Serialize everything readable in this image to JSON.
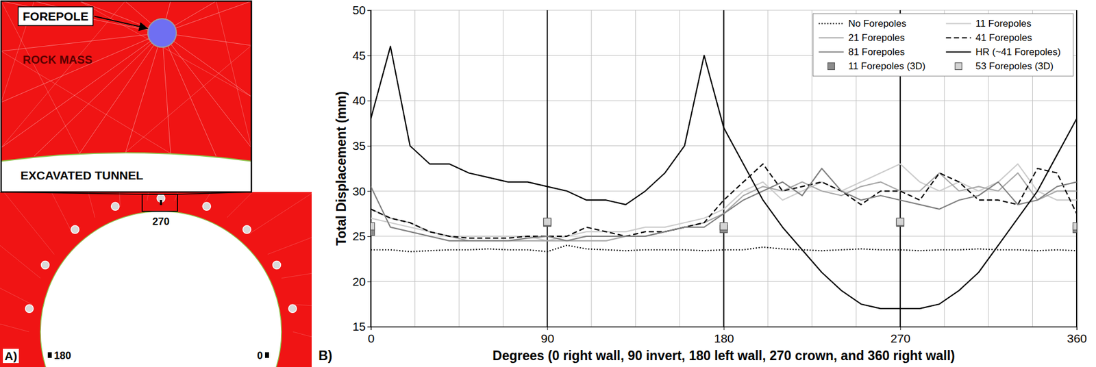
{
  "chart_data": {
    "type": "line",
    "panel_label": "B)",
    "x_label": "Degrees (0 right wall, 90 invert, 180 left wall, 270 crown, and 360 right wall)",
    "y_label": "Total Displacement (mm)",
    "x": [
      0,
      10,
      20,
      30,
      40,
      50,
      60,
      70,
      80,
      90,
      100,
      110,
      120,
      130,
      140,
      150,
      160,
      170,
      180,
      190,
      200,
      210,
      220,
      230,
      240,
      250,
      260,
      270,
      280,
      290,
      300,
      310,
      320,
      330,
      340,
      350,
      360
    ],
    "xlim": [
      0,
      360
    ],
    "xticks": [
      0,
      90,
      180,
      270,
      360
    ],
    "xgrid": [
      22.5,
      45,
      67.5,
      112.5,
      135,
      157.5,
      202.5,
      225,
      247.5,
      292.5,
      315,
      337.5
    ],
    "ylim": [
      15,
      50
    ],
    "yticks": [
      15,
      20,
      25,
      30,
      35,
      40,
      45,
      50
    ],
    "grid": true,
    "legend": "upper right",
    "series": [
      {
        "name": "No Forepoles",
        "color": "#000000",
        "line_style": "dotted",
        "values": [
          23.5,
          23.5,
          23.3,
          23.4,
          23.5,
          23.5,
          23.6,
          23.5,
          23.5,
          23.3,
          24.0,
          23.6,
          23.5,
          23.4,
          23.5,
          23.5,
          23.5,
          23.4,
          23.5,
          23.5,
          23.8,
          23.6,
          23.5,
          23.4,
          23.5,
          23.6,
          23.5,
          23.5,
          23.4,
          23.5,
          23.5,
          23.6,
          23.5,
          23.5,
          23.4,
          23.5,
          23.4
        ]
      },
      {
        "name": "11 Forepoles",
        "color": "#cccccc",
        "line_style": "solid",
        "values": [
          27,
          26.5,
          26,
          25.5,
          25,
          25,
          25,
          25,
          25,
          24.5,
          25,
          25.5,
          25.5,
          25.5,
          26,
          26,
          26.5,
          27,
          28,
          30,
          31,
          29,
          30,
          31,
          30,
          31,
          32,
          33,
          31,
          30,
          31,
          30,
          31,
          33,
          30,
          29,
          29
        ]
      },
      {
        "name": "21 Forepoles",
        "color": "#a8a8a8",
        "line_style": "solid",
        "values": [
          28,
          27,
          26.5,
          25.5,
          25,
          24.5,
          24.5,
          24.5,
          24.5,
          24.5,
          24.5,
          24.5,
          24.5,
          25,
          25,
          25.5,
          26,
          26.5,
          27.5,
          29.5,
          30.5,
          30,
          31,
          30,
          29.5,
          30.5,
          31,
          30,
          30,
          32,
          30,
          30.5,
          30,
          32,
          29,
          30,
          30
        ]
      },
      {
        "name": "41 Forepoles",
        "color": "#000000",
        "line_style": "dashed",
        "values": [
          28,
          27,
          26.5,
          25.5,
          25,
          24.8,
          24.8,
          24.8,
          25,
          25,
          25,
          26,
          25.5,
          25,
          25.5,
          25.5,
          26,
          26.5,
          29,
          31,
          33,
          30,
          30.5,
          31,
          30,
          28.5,
          30,
          30,
          29,
          32,
          31,
          29,
          29,
          28.5,
          32.5,
          32,
          27.5
        ]
      },
      {
        "name": "81 Forepoles",
        "color": "#808080",
        "line_style": "solid",
        "values": [
          30.5,
          26,
          25.5,
          25,
          24.5,
          24.5,
          24.5,
          24.5,
          24.8,
          25,
          24.5,
          25,
          25,
          25,
          25,
          25.5,
          26,
          26,
          27.5,
          29,
          30,
          31,
          29.5,
          32.5,
          30,
          29,
          29.5,
          29,
          28.5,
          28,
          29,
          29.5,
          31,
          28.5,
          29,
          30.5,
          31
        ]
      },
      {
        "name": "HR (~41 Forepoles)",
        "color": "#000000",
        "line_style": "solid",
        "values": [
          38,
          46,
          35,
          33,
          33,
          32,
          31.5,
          31,
          31,
          30.5,
          30,
          29,
          29,
          28.5,
          30,
          32,
          35,
          45,
          37,
          33,
          29,
          26,
          23.5,
          21,
          19,
          17.5,
          17,
          17,
          17,
          17.5,
          19,
          21,
          24,
          27,
          30,
          34,
          38
        ]
      },
      {
        "name": "11 Forepoles (3D)",
        "color": "#8c8c8c",
        "type": "scatter",
        "marker": "square",
        "values": [
          25.5,
          null,
          null,
          null,
          null,
          null,
          null,
          null,
          null,
          26.5,
          null,
          null,
          null,
          null,
          null,
          null,
          null,
          null,
          25.8,
          null,
          null,
          null,
          null,
          null,
          null,
          null,
          null,
          26.5,
          null,
          null,
          null,
          null,
          null,
          null,
          null,
          null,
          25.8
        ]
      },
      {
        "name": "53 Forepoles (3D)",
        "color": "#d4d4d4",
        "type": "scatter",
        "marker": "square",
        "values": [
          26.1,
          null,
          null,
          null,
          null,
          null,
          null,
          null,
          null,
          26.6,
          null,
          null,
          null,
          null,
          null,
          null,
          null,
          null,
          26.1,
          null,
          null,
          null,
          null,
          null,
          null,
          null,
          null,
          26.6,
          null,
          null,
          null,
          null,
          null,
          null,
          null,
          null,
          26.1
        ]
      }
    ]
  },
  "diagram": {
    "panel_label": "A)",
    "forepole": "FOREPOLE",
    "rock_mass": "ROCK MASS",
    "excavated_tunnel": "EXCAVATED TUNNEL",
    "angle_labels": [
      270,
      180,
      0
    ]
  }
}
